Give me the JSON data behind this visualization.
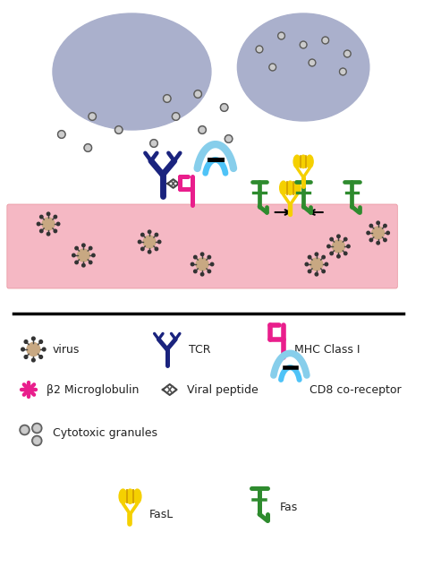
{
  "bg_color": "#ffffff",
  "cell_color": "#aab0cc",
  "membrane_color": "#f5b8c4",
  "membrane_edge": "#e8909a",
  "tcr_color": "#1a237e",
  "mhc_color": "#e91e8c",
  "cd8_light": "#87ceeb",
  "cd8_dark": "#4fc3f7",
  "fasl_color": "#f5d000",
  "fas_color": "#2e8b2e",
  "virus_color": "#c8a882",
  "b2m_color": "#e91e8c",
  "granule_color": "#888888",
  "arrow_color": "#222222",
  "text_color": "#222222",
  "legend_labels": {
    "virus": "virus",
    "tcr": "TCR",
    "mhc": "MHC Class I",
    "b2m": "β2 Microglobulin",
    "viral_peptide": "Viral peptide",
    "cd8": "CD8 co-receptor",
    "granules": "Cytotoxic granules",
    "fasl": "FasL",
    "fas": "Fas"
  }
}
